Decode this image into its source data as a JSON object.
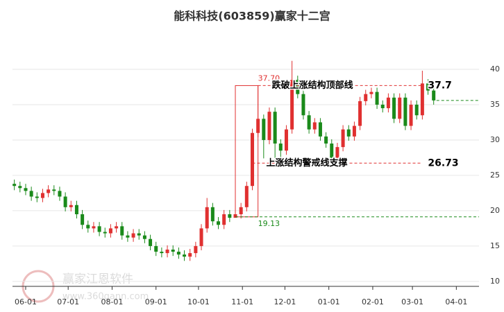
{
  "chart_data": {
    "type": "candlestick",
    "title": "能科科技(603859)赢家十二宫",
    "xlim": [
      -9.3,
      320
    ],
    "xticks": [
      {
        "value": 0,
        "label": "06-01"
      },
      {
        "value": 30,
        "label": "07-01"
      },
      {
        "value": 61,
        "label": "08-01"
      },
      {
        "value": 92,
        "label": "09-01"
      },
      {
        "value": 122,
        "label": "10-01"
      },
      {
        "value": 153,
        "label": "11-01"
      },
      {
        "value": 183,
        "label": "12-01"
      },
      {
        "value": 214,
        "label": "01-01"
      },
      {
        "value": 245,
        "label": "02-01"
      },
      {
        "value": 273,
        "label": "03-01"
      },
      {
        "value": 304,
        "label": "04-01"
      }
    ],
    "ylim": [
      9.3,
      45
    ],
    "yticks": [
      10,
      15,
      20,
      25,
      30,
      35,
      40
    ],
    "grid": true,
    "up_color": "#e03030",
    "down_color": "#1a8a1a",
    "x": [
      -8,
      -4,
      0,
      4,
      8,
      12,
      16,
      20,
      24,
      28,
      32,
      36,
      40,
      44,
      48,
      52,
      56,
      60,
      64,
      68,
      72,
      76,
      80,
      84,
      88,
      92,
      96,
      100,
      104,
      108,
      112,
      116,
      120,
      124,
      128,
      132,
      136,
      140,
      144,
      148,
      152,
      156,
      160,
      164,
      168,
      172,
      176,
      180,
      184,
      188,
      192,
      196,
      200,
      204,
      208,
      212,
      216,
      220,
      224,
      228,
      232,
      236,
      240,
      244,
      248,
      252,
      256,
      260,
      264,
      268,
      272,
      276,
      280,
      284,
      288
    ],
    "open": [
      23.8,
      23.5,
      23.2,
      22.8,
      22.0,
      21.8,
      22.5,
      23.0,
      22.8,
      22.0,
      20.5,
      20.8,
      19.5,
      18.0,
      17.5,
      17.8,
      17.0,
      16.8,
      17.5,
      17.8,
      16.5,
      16.2,
      16.8,
      16.5,
      16.0,
      15.0,
      14.2,
      14.0,
      14.5,
      14.2,
      13.8,
      13.5,
      14.0,
      15.0,
      17.5,
      20.5,
      18.5,
      18.0,
      19.5,
      19.0,
      19.5,
      20.5,
      23.5,
      31.0,
      33.0,
      30.0,
      34.0,
      29.5,
      28.5,
      31.5,
      38.5,
      36.5,
      33.5,
      31.5,
      32.5,
      30.5,
      29.5,
      27.5,
      29.0,
      31.5,
      30.5,
      32.0,
      35.5,
      36.5,
      36.8,
      35.0,
      34.5,
      36.0,
      33.0,
      36.0,
      32.0,
      35.0,
      33.5,
      38.0,
      37.0
    ],
    "high": [
      24.4,
      24.1,
      23.8,
      23.4,
      22.6,
      23.1,
      23.6,
      23.6,
      23.4,
      22.6,
      21.4,
      21.4,
      20.1,
      18.6,
      18.4,
      18.4,
      17.6,
      18.1,
      18.4,
      18.4,
      17.1,
      17.4,
      17.4,
      17.1,
      16.6,
      15.6,
      14.8,
      15.1,
      15.1,
      14.8,
      14.4,
      14.6,
      15.6,
      18.1,
      21.8,
      21.1,
      19.1,
      20.1,
      20.1,
      20.1,
      21.1,
      24.1,
      31.6,
      37.7,
      33.6,
      34.6,
      34.6,
      30.1,
      32.1,
      41.2,
      39.1,
      37.1,
      34.1,
      33.1,
      33.1,
      31.1,
      30.1,
      29.6,
      32.1,
      32.1,
      32.6,
      36.1,
      37.1,
      37.4,
      37.4,
      35.6,
      36.6,
      36.6,
      36.6,
      36.6,
      35.6,
      35.6,
      39.8,
      38.6,
      37.6
    ],
    "low": [
      22.9,
      22.6,
      22.2,
      21.4,
      21.2,
      21.2,
      21.9,
      22.2,
      21.4,
      19.9,
      19.9,
      18.9,
      17.4,
      16.9,
      16.9,
      16.4,
      16.2,
      16.2,
      16.9,
      15.9,
      15.6,
      15.6,
      15.9,
      15.4,
      14.4,
      13.6,
      13.4,
      13.4,
      13.6,
      13.2,
      12.9,
      12.9,
      13.4,
      14.4,
      16.9,
      17.9,
      17.4,
      17.4,
      18.4,
      19.13,
      18.9,
      19.9,
      22.9,
      30.4,
      27.4,
      29.4,
      26.9,
      26.5,
      27.9,
      30.9,
      35.9,
      32.9,
      30.9,
      30.9,
      29.9,
      28.9,
      26.9,
      26.9,
      28.4,
      29.9,
      29.9,
      31.4,
      34.9,
      35.9,
      34.4,
      33.9,
      33.9,
      32.4,
      32.4,
      31.4,
      31.4,
      32.9,
      32.9,
      36.4,
      35.0
    ],
    "close": [
      23.5,
      23.2,
      22.8,
      22.0,
      21.8,
      22.5,
      23.0,
      22.8,
      22.0,
      20.5,
      20.8,
      19.5,
      18.0,
      17.5,
      17.8,
      17.0,
      16.8,
      17.5,
      17.8,
      16.5,
      16.2,
      16.8,
      16.5,
      16.0,
      15.0,
      14.2,
      14.0,
      14.5,
      14.2,
      13.8,
      13.5,
      14.0,
      15.0,
      17.5,
      20.5,
      18.5,
      18.0,
      19.5,
      19.0,
      19.5,
      20.5,
      23.5,
      31.0,
      33.0,
      30.0,
      34.0,
      29.5,
      28.5,
      31.5,
      38.5,
      36.5,
      33.5,
      31.5,
      32.5,
      30.5,
      29.5,
      27.5,
      29.0,
      31.5,
      30.5,
      32.0,
      35.5,
      36.5,
      36.8,
      35.0,
      34.5,
      36.0,
      33.0,
      36.0,
      32.0,
      35.0,
      33.5,
      38.0,
      37.0,
      35.6
    ],
    "box": {
      "x0": 148,
      "x1": 164,
      "high": {
        "value": 37.7,
        "label": "37.70"
      },
      "low": 19.13,
      "color": "#e03030",
      "low_color": "#1a8a1a"
    },
    "lines": [
      {
        "text": "跌破上涨结构顶部线",
        "value": 37.7,
        "color": "#e03030",
        "x0": 164,
        "x1": 280
      },
      {
        "text": "上涨结构警戒线支撑",
        "value": 26.73,
        "color": "#e03030",
        "x0": 160,
        "x1": 280
      },
      {
        "value": 19.13,
        "color": "#1a8a1a",
        "x0": 148,
        "x1": 320
      },
      {
        "value": 35.6,
        "color": "#1a8a1a",
        "x0": 290,
        "x1": 320
      }
    ],
    "watermark": {
      "name": "赢家江恩软件",
      "url": "www.360gann.com"
    }
  }
}
